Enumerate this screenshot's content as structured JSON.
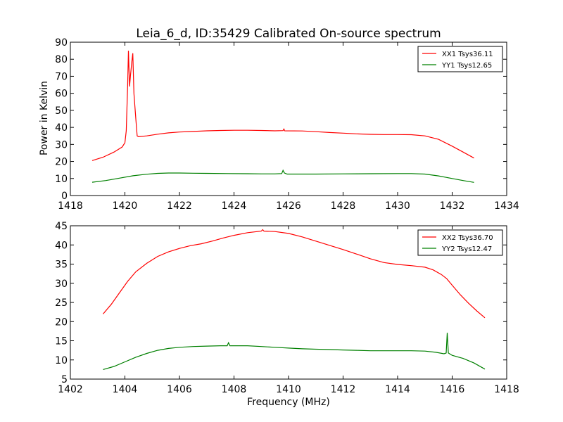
{
  "figure": {
    "title": "Leia_6_d, ID:35429 Calibrated On-source spectrum",
    "ylabel": "Power in Kelvin",
    "xlabel": "Frequency (MHz)"
  },
  "chart_data": [
    {
      "type": "line",
      "xlim": [
        1418,
        1434
      ],
      "ylim": [
        0,
        90
      ],
      "xticks": [
        1418,
        1420,
        1422,
        1424,
        1426,
        1428,
        1430,
        1432,
        1434
      ],
      "yticks": [
        0,
        10,
        20,
        30,
        40,
        50,
        60,
        70,
        80,
        90
      ],
      "grid": false,
      "legend_position": "top-right",
      "series": [
        {
          "name": "XX1 Tsys36.11",
          "color": "#ff0000",
          "points": [
            [
              1418.8,
              20.5
            ],
            [
              1419.2,
              22.5
            ],
            [
              1419.6,
              25.5
            ],
            [
              1419.9,
              28.5
            ],
            [
              1420.0,
              31
            ],
            [
              1420.05,
              38
            ],
            [
              1420.1,
              65
            ],
            [
              1420.13,
              85
            ],
            [
              1420.17,
              64
            ],
            [
              1420.2,
              70
            ],
            [
              1420.25,
              78
            ],
            [
              1420.29,
              83.5
            ],
            [
              1420.33,
              60
            ],
            [
              1420.4,
              45
            ],
            [
              1420.45,
              35
            ],
            [
              1420.5,
              34.5
            ],
            [
              1420.8,
              35
            ],
            [
              1421.2,
              36
            ],
            [
              1421.6,
              36.8
            ],
            [
              1422,
              37.3
            ],
            [
              1422.5,
              37.6
            ],
            [
              1423,
              38
            ],
            [
              1423.5,
              38.2
            ],
            [
              1424,
              38.3
            ],
            [
              1424.5,
              38.3
            ],
            [
              1425,
              38.2
            ],
            [
              1425.5,
              38
            ],
            [
              1425.8,
              38.1
            ],
            [
              1425.83,
              39
            ],
            [
              1425.86,
              38
            ],
            [
              1426.5,
              37.9
            ],
            [
              1427,
              37.5
            ],
            [
              1427.5,
              37
            ],
            [
              1428,
              36.6
            ],
            [
              1428.5,
              36.2
            ],
            [
              1429,
              35.9
            ],
            [
              1429.5,
              35.8
            ],
            [
              1430,
              35.8
            ],
            [
              1430.5,
              35.7
            ],
            [
              1431,
              35
            ],
            [
              1431.5,
              33
            ],
            [
              1432,
              29
            ],
            [
              1432.4,
              25.5
            ],
            [
              1432.8,
              22
            ]
          ]
        },
        {
          "name": "YY1 Tsys12.65",
          "color": "#008000",
          "points": [
            [
              1418.8,
              7.8
            ],
            [
              1419.3,
              8.8
            ],
            [
              1419.8,
              10.2
            ],
            [
              1420.3,
              11.6
            ],
            [
              1420.8,
              12.5
            ],
            [
              1421.2,
              13
            ],
            [
              1421.6,
              13.2
            ],
            [
              1422,
              13.2
            ],
            [
              1422.5,
              13.1
            ],
            [
              1423,
              13
            ],
            [
              1423.8,
              12.9
            ],
            [
              1424.5,
              12.8
            ],
            [
              1425,
              12.7
            ],
            [
              1425.5,
              12.7
            ],
            [
              1425.75,
              12.9
            ],
            [
              1425.8,
              14.8
            ],
            [
              1425.85,
              13.2
            ],
            [
              1425.95,
              12.6
            ],
            [
              1426.5,
              12.6
            ],
            [
              1427,
              12.6
            ],
            [
              1428,
              12.7
            ],
            [
              1429,
              12.8
            ],
            [
              1430,
              12.9
            ],
            [
              1430.5,
              12.9
            ],
            [
              1431,
              12.6
            ],
            [
              1431.5,
              11.5
            ],
            [
              1432,
              10
            ],
            [
              1432.4,
              8.8
            ],
            [
              1432.8,
              7.7
            ]
          ]
        }
      ]
    },
    {
      "type": "line",
      "xlim": [
        1402,
        1418
      ],
      "ylim": [
        5,
        45
      ],
      "xticks": [
        1402,
        1404,
        1406,
        1408,
        1410,
        1412,
        1414,
        1416,
        1418
      ],
      "yticks": [
        5,
        10,
        15,
        20,
        25,
        30,
        35,
        40,
        45
      ],
      "grid": false,
      "legend_position": "top-right",
      "series": [
        {
          "name": "XX2 Tsys36.70",
          "color": "#ff0000",
          "points": [
            [
              1403.2,
              22
            ],
            [
              1403.5,
              24.5
            ],
            [
              1403.8,
              27.5
            ],
            [
              1404.1,
              30.5
            ],
            [
              1404.4,
              33
            ],
            [
              1404.8,
              35.2
            ],
            [
              1405.2,
              37
            ],
            [
              1405.6,
              38.2
            ],
            [
              1406,
              39.1
            ],
            [
              1406.4,
              39.8
            ],
            [
              1406.8,
              40.3
            ],
            [
              1407.2,
              41
            ],
            [
              1407.6,
              41.8
            ],
            [
              1408,
              42.5
            ],
            [
              1408.5,
              43.2
            ],
            [
              1409,
              43.6
            ],
            [
              1409.05,
              44
            ],
            [
              1409.1,
              43.6
            ],
            [
              1409.5,
              43.5
            ],
            [
              1410,
              43
            ],
            [
              1410.5,
              42.1
            ],
            [
              1411,
              41
            ],
            [
              1411.5,
              39.9
            ],
            [
              1412,
              38.8
            ],
            [
              1412.5,
              37.6
            ],
            [
              1413,
              36.4
            ],
            [
              1413.5,
              35.4
            ],
            [
              1414,
              34.9
            ],
            [
              1414.5,
              34.6
            ],
            [
              1415,
              34.2
            ],
            [
              1415.3,
              33.5
            ],
            [
              1415.6,
              32.3
            ],
            [
              1415.8,
              31.2
            ],
            [
              1416,
              29.5
            ],
            [
              1416.3,
              27
            ],
            [
              1416.6,
              24.8
            ],
            [
              1416.9,
              22.8
            ],
            [
              1417.2,
              21
            ]
          ]
        },
        {
          "name": "YY2 Tsys12.47",
          "color": "#008000",
          "points": [
            [
              1403.2,
              7.5
            ],
            [
              1403.6,
              8.3
            ],
            [
              1404,
              9.5
            ],
            [
              1404.4,
              10.7
            ],
            [
              1404.8,
              11.7
            ],
            [
              1405.2,
              12.5
            ],
            [
              1405.6,
              13
            ],
            [
              1406,
              13.3
            ],
            [
              1406.5,
              13.5
            ],
            [
              1407,
              13.6
            ],
            [
              1407.5,
              13.7
            ],
            [
              1407.75,
              13.7
            ],
            [
              1407.8,
              14.5
            ],
            [
              1407.85,
              13.7
            ],
            [
              1408.5,
              13.7
            ],
            [
              1409,
              13.5
            ],
            [
              1409.5,
              13.3
            ],
            [
              1410,
              13.1
            ],
            [
              1410.5,
              12.9
            ],
            [
              1411,
              12.8
            ],
            [
              1411.5,
              12.7
            ],
            [
              1412,
              12.6
            ],
            [
              1412.5,
              12.5
            ],
            [
              1413,
              12.4
            ],
            [
              1413.5,
              12.4
            ],
            [
              1414,
              12.4
            ],
            [
              1414.5,
              12.4
            ],
            [
              1415,
              12.3
            ],
            [
              1415.4,
              12
            ],
            [
              1415.7,
              11.6
            ],
            [
              1415.78,
              11.8
            ],
            [
              1415.82,
              17.1
            ],
            [
              1415.86,
              11.8
            ],
            [
              1416,
              11.2
            ],
            [
              1416.4,
              10.4
            ],
            [
              1416.8,
              9.2
            ],
            [
              1417.2,
              7.6
            ]
          ]
        }
      ]
    }
  ]
}
